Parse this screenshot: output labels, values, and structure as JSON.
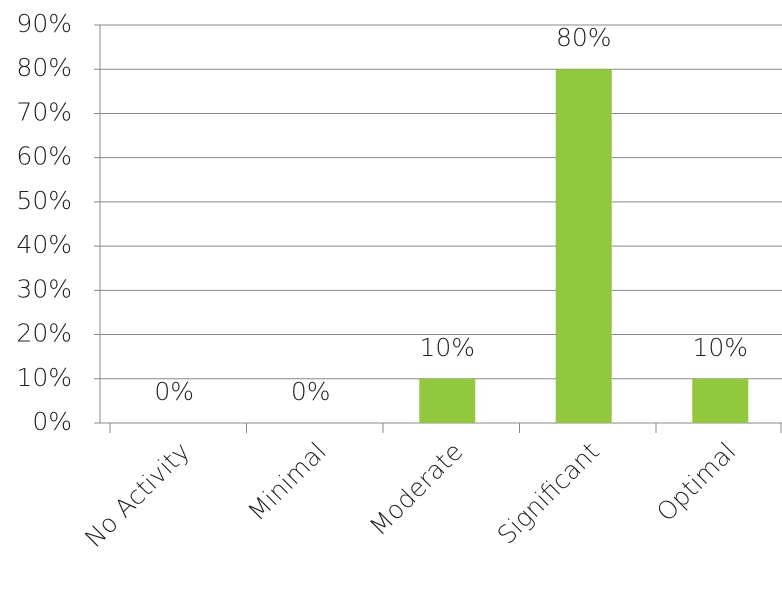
{
  "chart_data": {
    "type": "bar",
    "categories": [
      "No Activity",
      "Minimal",
      "Moderate",
      "Significant",
      "Optimal"
    ],
    "values": [
      0,
      0,
      10,
      80,
      10
    ],
    "value_labels": [
      "0%",
      "0%",
      "10%",
      "80%",
      "10%"
    ],
    "color": "#92c83e",
    "ylim": [
      0,
      90
    ],
    "yticks": [
      {
        "value": 0,
        "label": "0%"
      },
      {
        "value": 10,
        "label": "10%"
      },
      {
        "value": 20,
        "label": "20%"
      },
      {
        "value": 30,
        "label": "30%"
      },
      {
        "value": 40,
        "label": "40%"
      },
      {
        "value": 50,
        "label": "50%"
      },
      {
        "value": 60,
        "label": "60%"
      },
      {
        "value": 70,
        "label": "70%"
      },
      {
        "value": 80,
        "label": "80%"
      },
      {
        "value": 90,
        "label": "90%"
      }
    ],
    "grid": true
  }
}
